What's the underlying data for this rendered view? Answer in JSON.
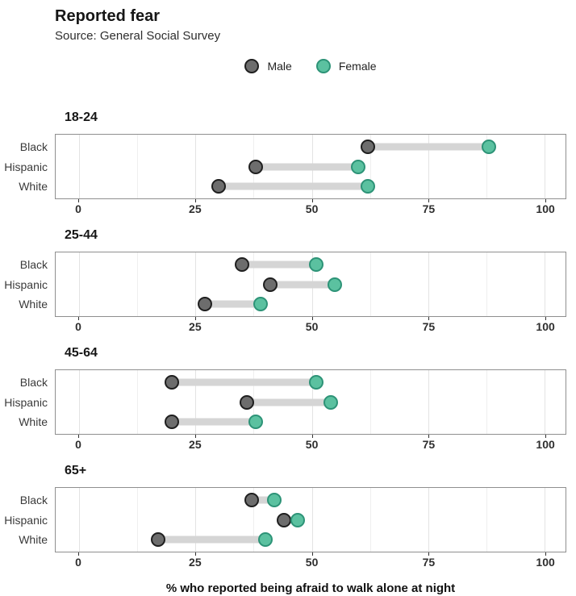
{
  "header": {
    "title": "Reported fear",
    "subtitle": "Source: General Social Survey"
  },
  "colors": {
    "male_fill": "#6d6d6d",
    "male_stroke": "#1f1f1f",
    "female_fill": "#5bc1a0",
    "female_stroke": "#2d9377",
    "bar": "#d5d5d5",
    "grid_major": "#e3e3e3",
    "grid_minor": "#efefef",
    "panel_border": "#8f8f8f",
    "tick": "#333333"
  },
  "chart_data": {
    "type": "dumbbell",
    "title": "Reported fear",
    "subtitle": "Source: General Social Survey",
    "xlabel": "% who reported being afraid to walk alone at night",
    "xlim": [
      0,
      100
    ],
    "x_ticks": [
      0,
      25,
      50,
      75,
      100
    ],
    "x_minor_ticks": [
      12.5,
      37.5,
      62.5,
      87.5
    ],
    "grid": true,
    "legend_position": "top-center",
    "series": [
      {
        "name": "Male",
        "color": "#6d6d6d"
      },
      {
        "name": "Female",
        "color": "#5bc1a0"
      }
    ],
    "facets": [
      {
        "title": "18-24",
        "rows": [
          {
            "label": "Black",
            "male": 62,
            "female": 88
          },
          {
            "label": "Hispanic",
            "male": 38,
            "female": 60
          },
          {
            "label": "White",
            "male": 30,
            "female": 62
          }
        ]
      },
      {
        "title": "25-44",
        "rows": [
          {
            "label": "Black",
            "male": 35,
            "female": 51
          },
          {
            "label": "Hispanic",
            "male": 41,
            "female": 55
          },
          {
            "label": "White",
            "male": 27,
            "female": 39
          }
        ]
      },
      {
        "title": "45-64",
        "rows": [
          {
            "label": "Black",
            "male": 20,
            "female": 51
          },
          {
            "label": "Hispanic",
            "male": 36,
            "female": 54
          },
          {
            "label": "White",
            "male": 20,
            "female": 38
          }
        ]
      },
      {
        "title": "65+",
        "rows": [
          {
            "label": "Black",
            "male": 37,
            "female": 42
          },
          {
            "label": "Hispanic",
            "male": 44,
            "female": 47
          },
          {
            "label": "White",
            "male": 17,
            "female": 40
          }
        ]
      }
    ]
  }
}
